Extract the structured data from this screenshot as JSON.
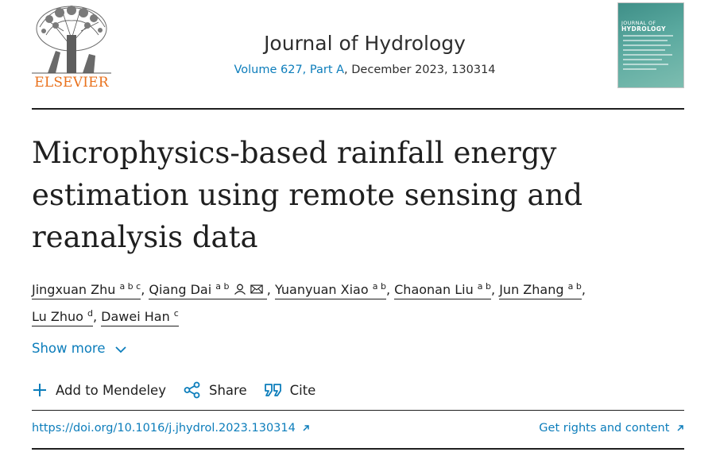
{
  "publisher": {
    "name": "ELSEVIER",
    "logo_icon": "elsevier-tree-icon"
  },
  "journal": {
    "title": "Journal of Hydrology",
    "volume_link": "Volume 627, Part A",
    "issue_rest": ", December 2023, 130314",
    "cover_icon": "journal-cover-icon",
    "cover_title_line1": "JOURNAL OF",
    "cover_title_line2": "HYDROLOGY"
  },
  "article": {
    "title_line1": "Microphysics-based rainfall energy",
    "title_line2": "estimation using remote sensing and",
    "title_line3": "reanalysis data"
  },
  "authors": [
    {
      "name": "Jingxuan Zhu",
      "affil": "a b c"
    },
    {
      "name": "Qiang Dai",
      "affil": "a b"
    },
    {
      "name": "Yuanyuan Xiao",
      "affil": "a b"
    },
    {
      "name": "Chaonan Liu",
      "affil": "a b"
    },
    {
      "name": "Jun Zhang",
      "affil": "a b"
    },
    {
      "name": "Lu Zhuo",
      "affil": "d"
    },
    {
      "name": "Dawei Han",
      "affil": "c"
    }
  ],
  "show_more": "Show more",
  "actions": {
    "mendeley": "Add to Mendeley",
    "share": "Share",
    "cite": "Cite"
  },
  "links": {
    "doi": "https://doi.org/10.1016/j.jhydrol.2023.130314",
    "rights": "Get rights and content"
  },
  "colors": {
    "accent": "#0c7dbb",
    "elsevier_orange": "#e9711c"
  }
}
